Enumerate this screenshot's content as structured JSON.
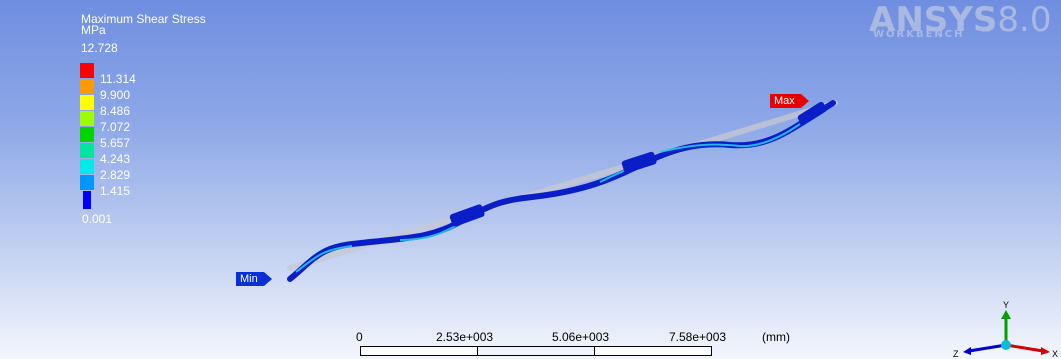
{
  "legend": {
    "title": "Maximum Shear Stress",
    "unit": "MPa",
    "max_value": "12.728",
    "min_value": "0.001",
    "bands": [
      {
        "label": "11.314",
        "color": "#ff0000"
      },
      {
        "label": "9.900",
        "color": "#ff9a00"
      },
      {
        "label": "8.486",
        "color": "#ffff00"
      },
      {
        "label": "7.072",
        "color": "#9cff00"
      },
      {
        "label": "5.657",
        "color": "#00d400"
      },
      {
        "label": "4.243",
        "color": "#00e6a0"
      },
      {
        "label": "2.829",
        "color": "#00e8e8"
      },
      {
        "label": "1.415",
        "color": "#0096ff"
      },
      {
        "label": "",
        "color": "#0000ff"
      }
    ]
  },
  "logo": {
    "brand": "ANSYS",
    "version": "8.0",
    "subtitle": "WORKBENCH"
  },
  "probes": {
    "max_label": "Max",
    "min_label": "Min",
    "max_color": "#e60000",
    "min_color": "#0a2fd6"
  },
  "scale_bar": {
    "ticks": [
      "0",
      "2.53e+003",
      "5.06e+003",
      "7.58e+003"
    ],
    "unit": "(mm)"
  },
  "triad": {
    "y_label": "Y",
    "z_label": "Z",
    "x_label": "X"
  }
}
